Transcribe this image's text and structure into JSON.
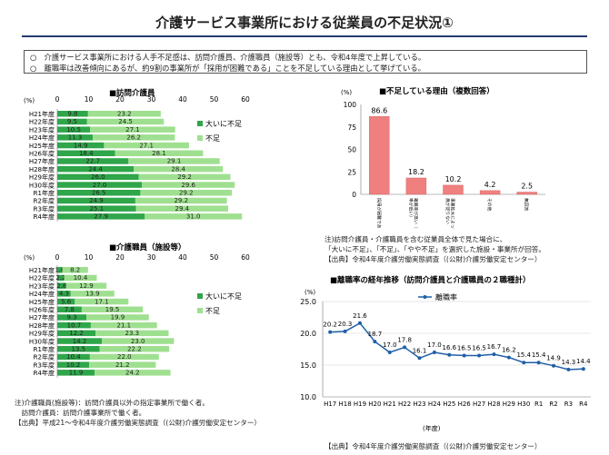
{
  "title": "介護サービス事業所における従業員の不足状況①",
  "summary": [
    "○　介護サービス事業所における人手不足感は、訪問介護員、介護職員（施設等）とも、令和4年度で上昇している。",
    "○　離職率は改善傾向にあるが、約9割の事業所が「採用が困難である」ことを不足している理由として挙げている。"
  ],
  "chart_data": [
    {
      "type": "bar",
      "stacked": true,
      "orientation": "horizontal",
      "title": "■訪問介護員",
      "unit_label": "(%)",
      "xlim": [
        0,
        60
      ],
      "ticks": [
        0,
        10,
        20,
        30,
        40,
        50,
        60
      ],
      "categories": [
        "H21年度",
        "H22年度",
        "H23年度",
        "H24年度",
        "H25年度",
        "H26年度",
        "H27年度",
        "H28年度",
        "H29年度",
        "H30年度",
        "R1年度",
        "R2年度",
        "R3年度",
        "R4年度"
      ],
      "series": [
        {
          "name": "大いに不足",
          "color": "#2fa64a",
          "values": [
            9.8,
            9.5,
            10.5,
            11.3,
            14.9,
            18.4,
            22.7,
            24.4,
            26.0,
            27.0,
            26.5,
            24.9,
            25.1,
            27.9
          ]
        },
        {
          "name": "不足",
          "color": "#9fe090",
          "values": [
            23.2,
            24.5,
            27.1,
            26.2,
            27.1,
            28.1,
            29.1,
            28.4,
            29.2,
            29.6,
            29.2,
            29.2,
            29.4,
            31.0
          ]
        }
      ]
    },
    {
      "type": "bar",
      "stacked": true,
      "orientation": "horizontal",
      "title": "■介護職員（施設等）",
      "unit_label": "(%)",
      "xlim": [
        0,
        60
      ],
      "ticks": [
        0,
        10,
        20,
        30,
        40,
        50,
        60
      ],
      "categories": [
        "H21年度",
        "H22年度",
        "H23年度",
        "H24年度",
        "H25年度",
        "H26年度",
        "H27年度",
        "H28年度",
        "H29年度",
        "H30年度",
        "R1年度",
        "R2年度",
        "R3年度",
        "R4年度"
      ],
      "series": [
        {
          "name": "大いに不足",
          "color": "#2fa64a",
          "values": [
            1.6,
            2.2,
            2.8,
            4.3,
            5.6,
            7.8,
            9.3,
            10.7,
            12.2,
            14.2,
            13.5,
            10.4,
            10.2,
            11.9
          ]
        },
        {
          "name": "不足",
          "color": "#9fe090",
          "values": [
            8.2,
            10.4,
            12.9,
            13.9,
            17.1,
            19.5,
            19.9,
            21.1,
            23.3,
            23.0,
            22.2,
            22.0,
            21.2,
            24.2
          ]
        }
      ]
    },
    {
      "type": "bar",
      "title": "■不足している理由（複数回答）",
      "unit_label": "(%)",
      "ylim": [
        0,
        100
      ],
      "ticks": [
        0,
        25,
        50,
        75,
        100
      ],
      "color": "#f08080",
      "categories": [
        "採用が困難である",
        "離職率が高い（定着率が低い）",
        "事業拡大によって人員が足りない",
        "その他",
        "無回答"
      ],
      "values": [
        86.6,
        18.2,
        10.2,
        4.2,
        2.5
      ]
    },
    {
      "type": "line",
      "title": "■離職率の経年推移（訪問介護員と介護職員の２職種計）",
      "unit_label": "(%)",
      "xlabel": "(年度)",
      "ylim": [
        10,
        25
      ],
      "ticks": [
        10.0,
        15.0,
        20.0,
        25.0
      ],
      "categories": [
        "H17",
        "H18",
        "H19",
        "H20",
        "H21",
        "H22",
        "H23",
        "H24",
        "H25",
        "H26",
        "H27",
        "H28",
        "H29",
        "H30",
        "R1",
        "R2",
        "R3",
        "R4"
      ],
      "series": [
        {
          "name": "離職率",
          "color": "#1f5fa8",
          "values": [
            20.2,
            20.3,
            21.6,
            18.7,
            17.0,
            17.8,
            16.1,
            17.0,
            16.6,
            16.5,
            16.5,
            16.7,
            16.2,
            15.4,
            15.4,
            14.9,
            14.3,
            14.4
          ]
        }
      ]
    }
  ],
  "notes": {
    "reason_note": [
      "注)訪問介護員・介護職員を含む従業員全体で見た場合に、",
      "「大いに不足」、「不足」、「やや不足」を選択した施設・事業所が回答。",
      "【出典】令和4年度介護労働実態調査（(公財)介護労働安定センター）"
    ],
    "care_note": [
      "注)介護職員(施設等)：訪問介護員以外の指定事業所で働く者。",
      "　訪問介護員：訪問介護事業所で働く者。",
      "【出典】平成21～令和4年度介護労働実態調査（(公財)介護労働安定センター）"
    ],
    "turnover_source": "【出典】令和4年度介護労働実態調査（(公財)介護労働安定センター）"
  }
}
